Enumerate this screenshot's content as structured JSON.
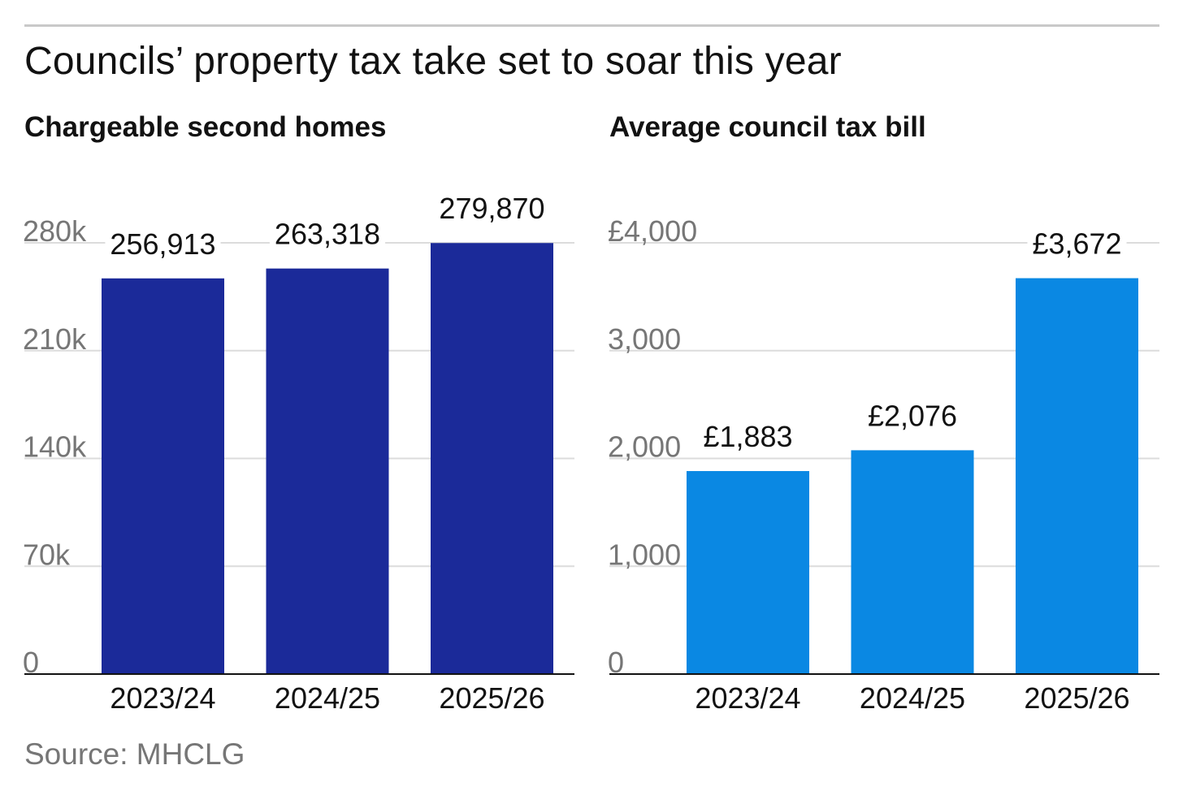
{
  "title": "Councils’ property tax take set to soar this year",
  "source": "Source: MHCLG",
  "chart_data": [
    {
      "type": "bar",
      "title": "Chargeable second homes",
      "categories": [
        "2023/24",
        "2024/25",
        "2025/26"
      ],
      "values": [
        256913,
        263318,
        279870
      ],
      "data_labels": [
        "256,913",
        "263,318",
        "279,870"
      ],
      "yticks": [
        0,
        70000,
        140000,
        210000,
        280000
      ],
      "ytick_labels": [
        "0",
        "70k",
        "140k",
        "210k",
        "280k"
      ],
      "ylim": [
        0,
        280000
      ],
      "color": "#1b2a99",
      "grid": true,
      "xlabel": "",
      "ylabel": ""
    },
    {
      "type": "bar",
      "title": "Average council tax bill",
      "categories": [
        "2023/24",
        "2024/25",
        "2025/26"
      ],
      "values": [
        1883,
        2076,
        3672
      ],
      "data_labels": [
        "£1,883",
        "£2,076",
        "£3,672"
      ],
      "yticks": [
        0,
        1000,
        2000,
        3000,
        4000
      ],
      "ytick_labels": [
        "0",
        "1,000",
        "2,000",
        "3,000",
        "£4,000"
      ],
      "ylim": [
        0,
        4000
      ],
      "color": "#0a88e3",
      "grid": true,
      "xlabel": "",
      "ylabel": ""
    }
  ]
}
